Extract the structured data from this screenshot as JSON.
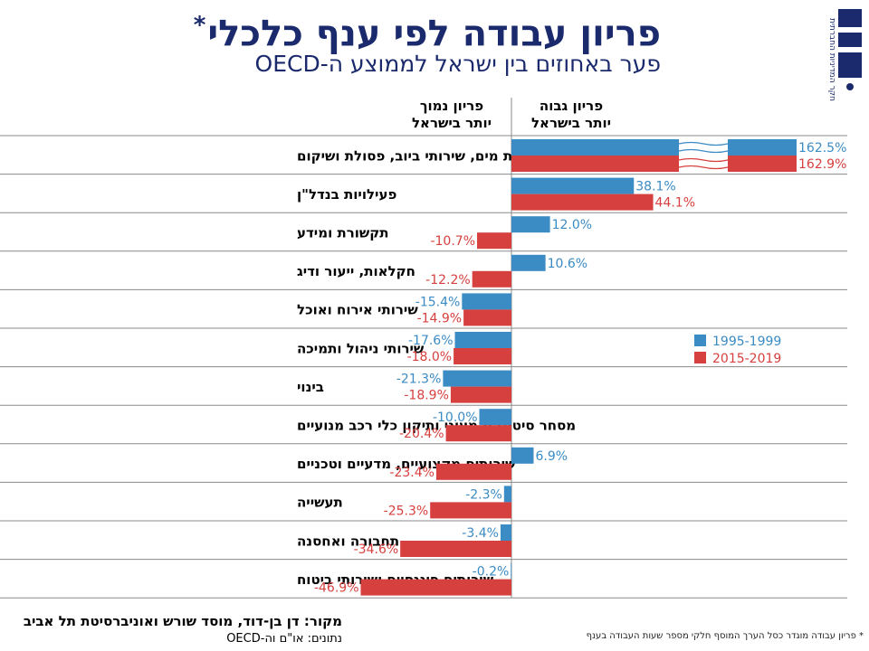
{
  "header": {
    "title": "פריון עבודה לפי ענף כלכלי",
    "title_mark": "*",
    "subtitle": "פער באחוזים בין ישראל לממוצע ה-OECD",
    "logo_text": "מרכז טאוב",
    "logo_side_text": "חקר המדיניות החברתית"
  },
  "columns": {
    "higher_line1": "פריון גבוה",
    "higher_line2": "יותר בישראל",
    "lower_line1": "פריון נמוך",
    "lower_line2": "יותר בישראל"
  },
  "chart_data": {
    "type": "bar",
    "orientation": "horizontal",
    "unit": "%",
    "categories": [
      "אספקת מים, שירותי ביוב, פסולת ושיקום",
      "פעילויות בנדל\"ן",
      "תקשורת ומידע",
      "חקלאות, ייעור ודיג",
      "שירותי אירוח ואוכל",
      "שירותי ניהול ותמיכה",
      "בינוי",
      "מסחר סיטוני וקמעוני ותיקון כלי רכב מנועיים",
      "שירותים מקצועיים, מדעיים וטכניים",
      "תעשייה",
      "תחבורה ואחסנה",
      "שירותים פיננסיים ושירותי ביטוח"
    ],
    "series": [
      {
        "name": "1995-1999",
        "color": "#3b8bc4",
        "values": [
          162.5,
          38.1,
          12.0,
          10.6,
          -15.4,
          -17.6,
          -21.3,
          -10.0,
          6.9,
          -2.3,
          -3.4,
          -0.2
        ]
      },
      {
        "name": "2015-2019",
        "color": "#d6403e",
        "values": [
          162.9,
          44.1,
          -10.7,
          -12.2,
          -14.9,
          -18.0,
          -18.9,
          -20.4,
          -23.4,
          -25.3,
          -34.6,
          -46.9
        ]
      }
    ],
    "value_labels": [
      [
        "162.5%",
        "38.1%",
        "12.0%",
        "10.6%",
        "-15.4%",
        "-17.6%",
        "-21.3%",
        "-10.0%",
        "6.9%",
        "-2.3%",
        "-3.4%",
        "-0.2%"
      ],
      [
        "162.9%",
        "44.1%",
        "-10.7%",
        "-12.2%",
        "-14.9%",
        "-18.0%",
        "-18.9%",
        "-20.4%",
        "-23.4%",
        "-25.3%",
        "-34.6%",
        "-46.9%"
      ]
    ],
    "axis_break": {
      "category_index": 0
    },
    "legend_position": "right",
    "grid": "horizontal-row-separators"
  },
  "footer": {
    "source": "מקור: דן בן-דוד, מוסד שורש ואוניברסיטת תל אביב",
    "data_note": "נתונים: או\"ם וה-OECD",
    "footnote": "* פריון עבודה מוגדר כסל הערך המוסף חלקי מספר שעות העבודה בענף"
  }
}
